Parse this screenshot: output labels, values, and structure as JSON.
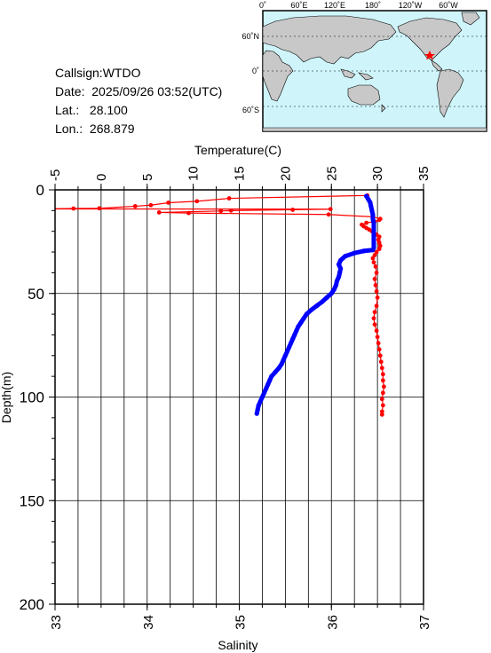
{
  "info": {
    "callsign": "Callsign:WTDO",
    "date_label": "Date:",
    "date_value": "2025/09/26 03:52(UTC)",
    "lat_label": "Lat.:",
    "lat_value": "28.100",
    "lon_label": "Lon.:",
    "lon_value": "268.879"
  },
  "map": {
    "top_labels": [
      "0˚",
      "60˚E",
      "120˚E",
      "180˚",
      "120˚W",
      "60˚W"
    ],
    "left_labels": [
      "60˚N",
      "0˚",
      "60˚S"
    ],
    "ocean_color": "#cff5fb",
    "land_color": "#c8c8c8",
    "marker": "star-icon",
    "marker_color": "#ff0000"
  },
  "chart_data": {
    "type": "line",
    "x_top_label": "Temperature(C)",
    "x_bottom_label": "Salinity",
    "y_label": "Depth(m)",
    "temperature_ticks": [
      "-5",
      "0",
      "5",
      "10",
      "15",
      "20",
      "25",
      "30",
      "35"
    ],
    "salinity_ticks": [
      "33",
      "34",
      "35",
      "36",
      "37"
    ],
    "depth_ticks": [
      "0",
      "50",
      "100",
      "150",
      "200"
    ],
    "temperature_range": [
      -5,
      35
    ],
    "salinity_range": [
      33,
      37
    ],
    "depth_range": [
      0,
      200
    ],
    "grid": true,
    "series": [
      {
        "quantity": "temperature",
        "color": "#ff0000",
        "points": [
          [
            28.9,
            2.7
          ],
          [
            13.9,
            4.1
          ],
          [
            10.4,
            5.5
          ],
          [
            7.3,
            6.2
          ],
          [
            5.4,
            7.4
          ],
          [
            3.7,
            7.9
          ],
          [
            -0.2,
            8.9
          ],
          [
            -3.0,
            9.0
          ],
          [
            -9.0,
            9.1
          ],
          [
            -10.0,
            9.2
          ],
          [
            24.9,
            9.3
          ],
          [
            20.8,
            9.6
          ],
          [
            14.1,
            10.0
          ],
          [
            13.0,
            10.2
          ],
          [
            6.3,
            10.9
          ],
          [
            9.5,
            11.2
          ],
          [
            24.7,
            11.9
          ],
          [
            29.5,
            13.0
          ],
          [
            30.3,
            14.0
          ],
          [
            30.2,
            14.5
          ],
          [
            29.7,
            15.3
          ],
          [
            28.8,
            15.9
          ],
          [
            28.3,
            16.8
          ],
          [
            28.5,
            17.6
          ],
          [
            28.8,
            18.4
          ],
          [
            29.1,
            19.2
          ],
          [
            29.4,
            20.0
          ],
          [
            29.6,
            20.8
          ],
          [
            29.9,
            21.6
          ],
          [
            30.2,
            22.6
          ],
          [
            30.1,
            24.0
          ],
          [
            30.2,
            25.5
          ],
          [
            30.3,
            27.0
          ],
          [
            30.2,
            28.5
          ],
          [
            29.9,
            30.0
          ],
          [
            29.7,
            31.5
          ],
          [
            29.5,
            33.0
          ],
          [
            29.6,
            35.0
          ],
          [
            29.8,
            37.0
          ],
          [
            29.9,
            40.0
          ],
          [
            29.7,
            43.0
          ],
          [
            29.8,
            46.0
          ],
          [
            29.9,
            49.0
          ],
          [
            30.0,
            52.0
          ],
          [
            29.9,
            56.0
          ],
          [
            29.7,
            59.0
          ],
          [
            29.6,
            62.0
          ],
          [
            29.7,
            65.0
          ],
          [
            29.9,
            68.0
          ],
          [
            30.0,
            71.0
          ],
          [
            30.1,
            74.0
          ],
          [
            30.2,
            77.0
          ],
          [
            30.3,
            80.0
          ],
          [
            30.4,
            83.0
          ],
          [
            30.5,
            86.0
          ],
          [
            30.6,
            89.0
          ],
          [
            30.6,
            92.0
          ],
          [
            30.7,
            95.0
          ],
          [
            30.6,
            98.0
          ],
          [
            30.5,
            101.0
          ],
          [
            30.6,
            104.0
          ],
          [
            30.5,
            107.0
          ],
          [
            30.5,
            108.5
          ]
        ]
      },
      {
        "quantity": "salinity",
        "color": "#0000ff",
        "points": [
          [
            36.38,
            3.0
          ],
          [
            36.4,
            4.5
          ],
          [
            36.42,
            6.0
          ],
          [
            36.43,
            8.0
          ],
          [
            36.44,
            10.0
          ],
          [
            36.45,
            12.0
          ],
          [
            36.45,
            14.0
          ],
          [
            36.46,
            16.0
          ],
          [
            36.46,
            18.0
          ],
          [
            36.46,
            20.0
          ],
          [
            36.46,
            22.0
          ],
          [
            36.46,
            24.0
          ],
          [
            36.46,
            26.0
          ],
          [
            36.46,
            28.0
          ],
          [
            36.45,
            29.0
          ],
          [
            36.35,
            29.5
          ],
          [
            36.25,
            30.5
          ],
          [
            36.15,
            32.0
          ],
          [
            36.1,
            34.0
          ],
          [
            36.08,
            36.0
          ],
          [
            36.1,
            38.0
          ],
          [
            36.09,
            40.0
          ],
          [
            36.08,
            42.0
          ],
          [
            36.06,
            44.0
          ],
          [
            36.05,
            46.0
          ],
          [
            36.03,
            48.0
          ],
          [
            36.0,
            50.0
          ],
          [
            35.95,
            52.0
          ],
          [
            35.9,
            54.0
          ],
          [
            35.84,
            56.0
          ],
          [
            35.78,
            58.0
          ],
          [
            35.73,
            60.0
          ],
          [
            35.7,
            62.0
          ],
          [
            35.67,
            64.0
          ],
          [
            35.64,
            66.0
          ],
          [
            35.62,
            68.0
          ],
          [
            35.6,
            70.0
          ],
          [
            35.58,
            72.0
          ],
          [
            35.56,
            74.0
          ],
          [
            35.54,
            76.0
          ],
          [
            35.52,
            78.0
          ],
          [
            35.5,
            80.0
          ],
          [
            35.48,
            82.0
          ],
          [
            35.46,
            84.0
          ],
          [
            35.43,
            86.0
          ],
          [
            35.39,
            88.0
          ],
          [
            35.35,
            90.0
          ],
          [
            35.33,
            92.0
          ],
          [
            35.31,
            94.0
          ],
          [
            35.29,
            96.0
          ],
          [
            35.27,
            98.0
          ],
          [
            35.25,
            100.0
          ],
          [
            35.23,
            102.0
          ],
          [
            35.21,
            104.0
          ],
          [
            35.2,
            106.0
          ],
          [
            35.19,
            108.0
          ]
        ]
      }
    ]
  }
}
